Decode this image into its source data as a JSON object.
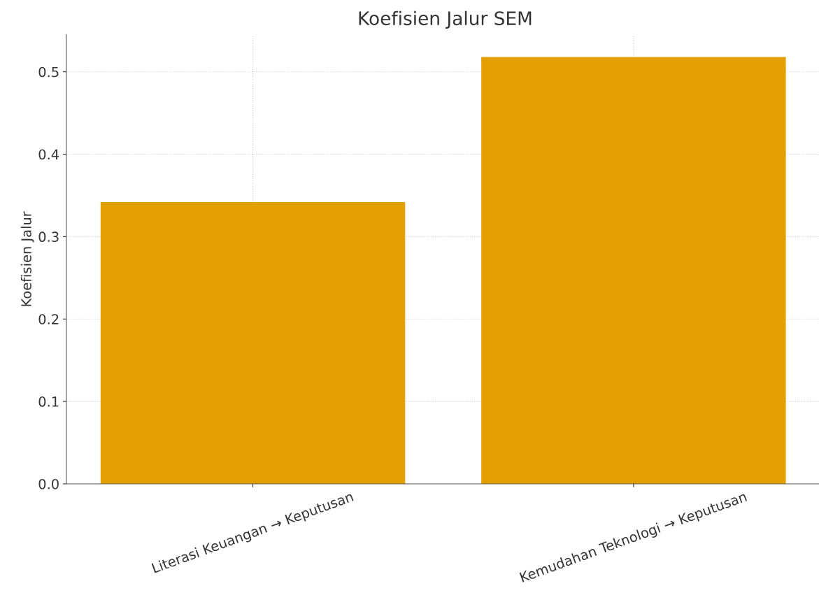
{
  "chart_data": {
    "type": "bar",
    "title": "Koefisien Jalur SEM",
    "ylabel": "Koefisien Jalur",
    "categories": [
      "Literasi Keuangan → Keputusan",
      "Kemudahan Teknologi → Keputusan"
    ],
    "values": [
      0.342,
      0.518
    ],
    "color": "#e4a000",
    "ylim": [
      0,
      0.545
    ],
    "yticks": [
      {
        "value": 0,
        "label": "0.0"
      },
      0.1,
      0.2,
      0.3,
      0.4,
      0.5
    ],
    "grid": true,
    "legend": false
  }
}
